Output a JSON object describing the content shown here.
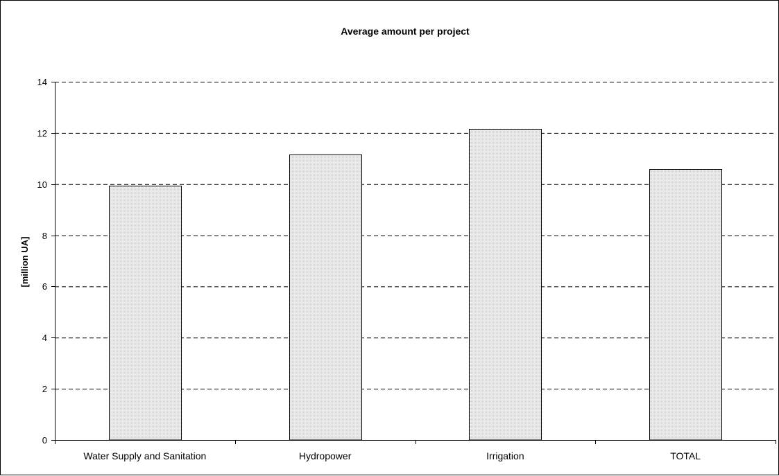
{
  "chart_data": {
    "type": "bar",
    "title": "Average amount per project",
    "xlabel": "",
    "ylabel": "[million UA]",
    "categories": [
      "Water Supply and Sanitation",
      "Hydropower",
      "Irrigation",
      "TOTAL"
    ],
    "values": [
      9.95,
      11.15,
      12.15,
      10.6
    ],
    "ylim": [
      0,
      14
    ],
    "yticks": [
      0,
      2,
      4,
      6,
      8,
      10,
      12,
      14
    ],
    "grid": "horizontal dashed",
    "legend": "none",
    "colors": {
      "bar_fill": "#e4e4e4",
      "bar_stroke": "#000000",
      "grid": "#000000",
      "axis": "#000000"
    }
  }
}
